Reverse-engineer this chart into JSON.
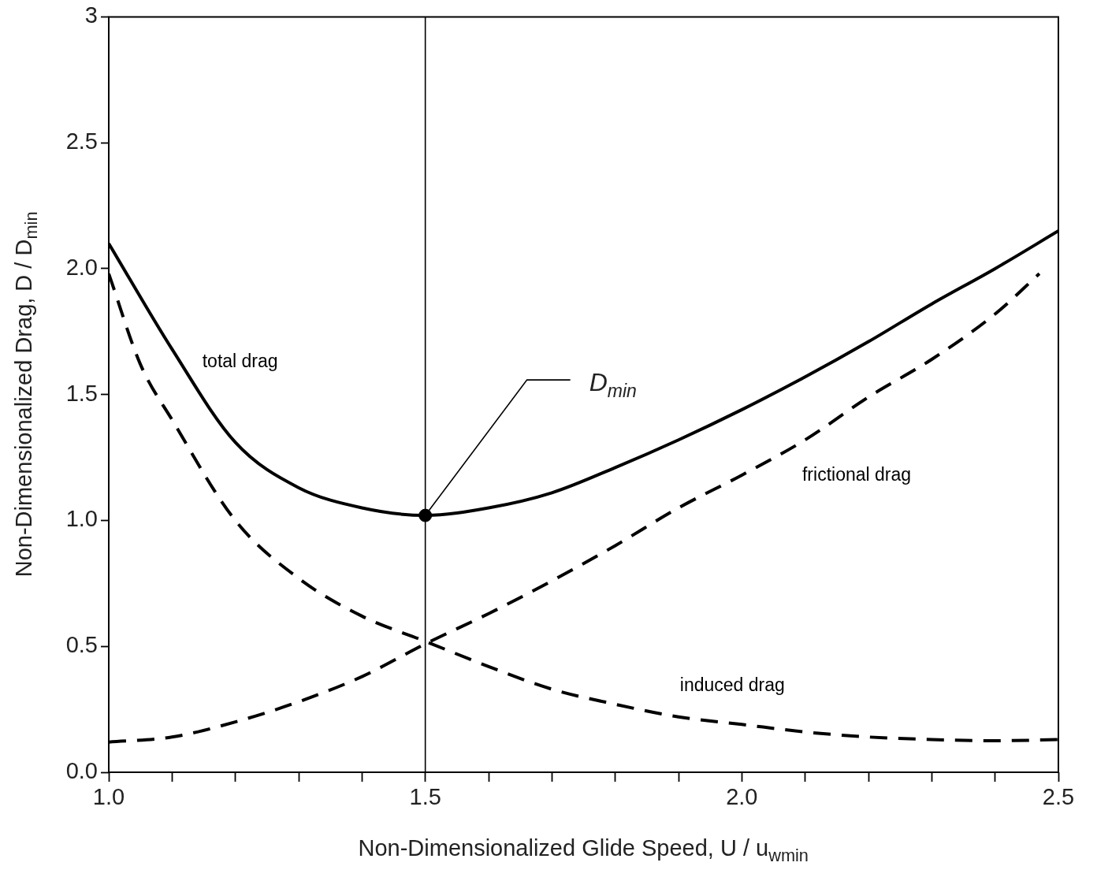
{
  "chart_data": {
    "type": "line",
    "xlabel": "Non-Dimensionalized Glide Speed, U / u$_{w}$$_{min}$",
    "ylabel": "Non-Dimensionalized Drag, D / D$_{min}$",
    "xlim": [
      1,
      2.5
    ],
    "xticks": [
      {
        "value": 1,
        "label": "1.0"
      },
      {
        "value": 1.1,
        "label": null
      },
      {
        "value": 1.2,
        "label": null
      },
      {
        "value": 1.3,
        "label": null
      },
      {
        "value": 1.4,
        "label": null
      },
      {
        "value": 1.5,
        "label": "1.5"
      },
      {
        "value": 1.6,
        "label": null
      },
      {
        "value": 1.7,
        "label": null
      },
      {
        "value": 1.8,
        "label": null
      },
      {
        "value": 1.9,
        "label": null
      },
      {
        "value": 2,
        "label": "2.0"
      },
      {
        "value": 2.1,
        "label": null
      },
      {
        "value": 2.2,
        "label": null
      },
      {
        "value": 2.3,
        "label": null
      },
      {
        "value": 2.4,
        "label": null
      },
      {
        "value": 2.5,
        "label": "2.5"
      }
    ],
    "ylim": [
      0,
      3
    ],
    "yticks": [
      {
        "value": 0,
        "label": "0.0"
      },
      {
        "value": 0.5,
        "label": "0.5"
      },
      {
        "value": 1,
        "label": "1.0"
      },
      {
        "value": 1.5,
        "label": "1.5"
      },
      {
        "value": 2,
        "label": "2.0"
      },
      {
        "value": 2.5,
        "label": "2.5"
      },
      3
    ],
    "grid": false,
    "legend": false,
    "marker": "none",
    "ref_lines": [
      {
        "axis": "x",
        "value": 1.5,
        "color": "#000000"
      }
    ],
    "annotations": [
      {
        "text": "D$_{min}$",
        "x": 1.5,
        "y": 1.02
      }
    ],
    "series": [
      {
        "name": "total drag",
        "color": "#000000",
        "line_style": "solid",
        "x": [
          1.0,
          1.1,
          1.2,
          1.3,
          1.4,
          1.5,
          1.6,
          1.7,
          1.8,
          1.9,
          2.0,
          2.1,
          2.2,
          2.3,
          2.4,
          2.5
        ],
        "values": [
          2.1,
          1.68,
          1.31,
          1.13,
          1.05,
          1.02,
          1.05,
          1.11,
          1.21,
          1.32,
          1.44,
          1.57,
          1.71,
          1.86,
          2.0,
          2.15
        ]
      },
      {
        "name": "frictional drag",
        "color": "#000000",
        "line_style": "dashed",
        "x": [
          1.0,
          1.1,
          1.2,
          1.3,
          1.4,
          1.5,
          1.6,
          1.7,
          1.8,
          1.9,
          2.0,
          2.1,
          2.2,
          2.3,
          2.4,
          2.47
        ],
        "values": [
          0.12,
          0.14,
          0.2,
          0.28,
          0.38,
          0.51,
          0.63,
          0.76,
          0.9,
          1.05,
          1.18,
          1.32,
          1.49,
          1.64,
          1.82,
          1.98
        ]
      },
      {
        "name": "induced drag",
        "color": "#000000",
        "line_style": "dashed",
        "x": [
          1.0,
          1.05,
          1.1,
          1.2,
          1.3,
          1.4,
          1.5,
          1.6,
          1.7,
          1.8,
          1.9,
          2.0,
          2.1,
          2.2,
          2.3,
          2.4,
          2.5
        ],
        "values": [
          1.98,
          1.62,
          1.4,
          1.0,
          0.77,
          0.62,
          0.52,
          0.42,
          0.33,
          0.27,
          0.22,
          0.19,
          0.16,
          0.14,
          0.13,
          0.125,
          0.13
        ]
      },
      {
        "type": "scatter",
        "marker": "circle",
        "color": "#000000",
        "x": [
          1.5
        ],
        "values": [
          1.02
        ]
      }
    ]
  }
}
